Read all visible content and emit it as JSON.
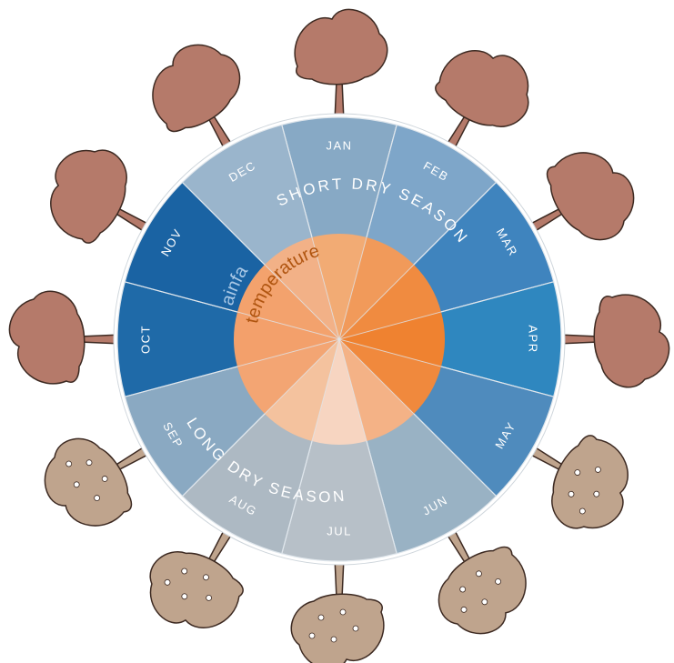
{
  "months": [
    {
      "label": "JAN",
      "rain_color": "#87a9c5",
      "temp_color": "#f2ab74"
    },
    {
      "label": "FEB",
      "rain_color": "#7ea6c9",
      "temp_color": "#f19a5a"
    },
    {
      "label": "MAR",
      "rain_color": "#3f84be",
      "temp_color": "#f08b40"
    },
    {
      "label": "APR",
      "rain_color": "#2f87bf",
      "temp_color": "#ef8230"
    },
    {
      "label": "MAY",
      "rain_color": "#4f8bbd",
      "temp_color": "#f0893d"
    },
    {
      "label": "JUN",
      "rain_color": "#99b2c4",
      "temp_color": "#f4b286"
    },
    {
      "label": "JUL",
      "rain_color": "#b7c0c8",
      "temp_color": "#f7d5c1"
    },
    {
      "label": "AUG",
      "rain_color": "#adb9c3",
      "temp_color": "#f4c29e"
    },
    {
      "label": "SEP",
      "rain_color": "#8aa9c2",
      "temp_color": "#f3a573"
    },
    {
      "label": "OCT",
      "rain_color": "#1f6aa8",
      "temp_color": "#f3a06b"
    },
    {
      "label": "NOV",
      "rain_color": "#1a63a3",
      "temp_color": "#f3a26d"
    },
    {
      "label": "DEC",
      "rain_color": "#9ab5cc",
      "temp_color": "#f2b187"
    }
  ],
  "seasons": {
    "short_dry": "SHORT DRY SEASON",
    "long_dry": "LONG DRY SEASON"
  },
  "rings": {
    "outer": "rainfall",
    "inner": "temperature"
  },
  "colors": {
    "rim": "#ffffff",
    "divider": "#dfe6ec",
    "tree_leafy": "#b57a6a",
    "tree_bare": "#bfa48d",
    "tree_stroke": "#3d2a22",
    "rain_text": "#a9c8e6",
    "temp_text": "#b05510"
  },
  "trees": [
    {
      "month": "JAN",
      "state": "leafy"
    },
    {
      "month": "FEB",
      "state": "leafy"
    },
    {
      "month": "MAR",
      "state": "leafy"
    },
    {
      "month": "APR",
      "state": "leafy"
    },
    {
      "month": "MAY",
      "state": "bare"
    },
    {
      "month": "JUN",
      "state": "bare"
    },
    {
      "month": "JUL",
      "state": "bare"
    },
    {
      "month": "AUG",
      "state": "bare"
    },
    {
      "month": "SEP",
      "state": "bare"
    },
    {
      "month": "OCT",
      "state": "leafy"
    },
    {
      "month": "NOV",
      "state": "leafy"
    },
    {
      "month": "DEC",
      "state": "leafy"
    }
  ]
}
